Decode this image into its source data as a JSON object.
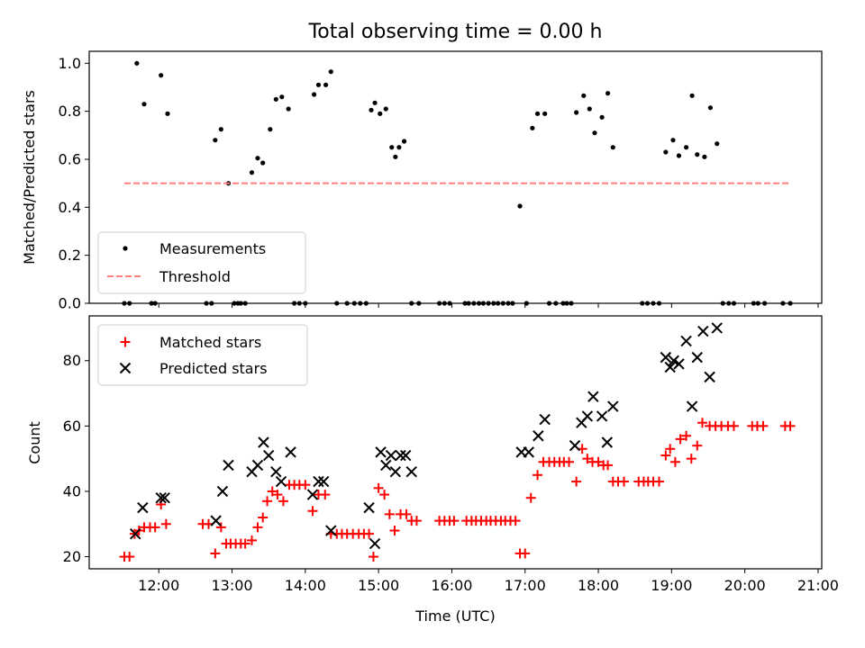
{
  "chart_data": [
    {
      "type": "scatter",
      "title": "Total observing time = 0.00 h",
      "xlabel": "",
      "ylabel": "Matched/Predicted stars",
      "ylim": [
        0.0,
        1.05
      ],
      "yticks": [
        "0.0",
        "0.2",
        "0.4",
        "0.6",
        "0.8",
        "1.0"
      ],
      "x_axis": "time (UTC, hours)",
      "xlim": [
        11.05,
        21.05
      ],
      "legend": {
        "placement": "lower-left",
        "entries": [
          "Measurements",
          "Threshold"
        ]
      },
      "series": [
        {
          "name": "Measurements",
          "marker": "dot",
          "color": "#000000",
          "x": [
            11.53,
            11.6,
            11.7,
            11.8,
            11.9,
            11.95,
            12.03,
            12.12,
            12.65,
            12.72,
            12.77,
            12.85,
            12.95,
            13.03,
            13.08,
            13.12,
            13.18,
            13.27,
            13.35,
            13.42,
            13.52,
            13.6,
            13.68,
            13.77,
            13.85,
            13.92,
            14.0,
            14.12,
            14.18,
            14.28,
            14.35,
            14.43,
            14.57,
            14.67,
            14.75,
            14.83,
            14.9,
            14.95,
            15.02,
            15.1,
            15.18,
            15.23,
            15.28,
            15.35,
            15.45,
            15.55,
            15.83,
            15.9,
            15.97,
            16.18,
            16.23,
            16.3,
            16.37,
            16.43,
            16.5,
            16.57,
            16.63,
            16.7,
            16.77,
            16.83,
            16.93,
            17.02,
            17.1,
            17.17,
            17.27,
            17.33,
            17.42,
            17.52,
            17.57,
            17.63,
            17.7,
            17.8,
            17.88,
            17.95,
            18.05,
            18.13,
            18.2,
            18.6,
            18.67,
            18.75,
            18.83,
            18.92,
            19.02,
            19.1,
            19.2,
            19.28,
            19.35,
            19.45,
            19.53,
            19.62,
            19.7,
            19.78,
            19.85,
            20.12,
            20.18,
            20.27,
            20.52,
            20.62
          ],
          "y": [
            0.0,
            0.0,
            1.0,
            0.83,
            0.0,
            0.0,
            0.95,
            0.79,
            0.0,
            0.0,
            0.68,
            0.725,
            0.5,
            0.0,
            0.0,
            0.0,
            0.0,
            0.545,
            0.605,
            0.585,
            0.725,
            0.85,
            0.86,
            0.81,
            0.0,
            0.0,
            0.0,
            0.87,
            0.91,
            0.91,
            0.965,
            0.0,
            0.0,
            0.0,
            0.0,
            0.0,
            0.805,
            0.835,
            0.79,
            0.81,
            0.65,
            0.61,
            0.65,
            0.675,
            0.0,
            0.0,
            0.0,
            0.0,
            0.0,
            0.0,
            0.0,
            0.0,
            0.0,
            0.0,
            0.0,
            0.0,
            0.0,
            0.0,
            0.0,
            0.0,
            0.405,
            0.0,
            0.73,
            0.79,
            0.79,
            0.0,
            0.0,
            0.0,
            0.0,
            0.0,
            0.795,
            0.865,
            0.81,
            0.71,
            0.775,
            0.875,
            0.65,
            0.0,
            0.0,
            0.0,
            0.0,
            0.63,
            0.68,
            0.615,
            0.65,
            0.865,
            0.62,
            0.61,
            0.815,
            0.665,
            0.0,
            0.0,
            0.0,
            0.0,
            0.0,
            0.0,
            0.0,
            0.0
          ]
        },
        {
          "name": "Threshold",
          "style": "dashed-line",
          "color": "#ff7f7f",
          "x": [
            11.53,
            20.62
          ],
          "y": [
            0.5,
            0.5
          ]
        }
      ]
    },
    {
      "type": "scatter",
      "title": "",
      "xlabel": "Time (UTC)",
      "ylabel": "Count",
      "ylim": [
        16.3,
        93.7
      ],
      "yticks": [
        "20",
        "40",
        "60",
        "80"
      ],
      "x_axis": "time (UTC, hours)",
      "xlim": [
        11.05,
        21.05
      ],
      "xticks": [
        "12:00",
        "13:00",
        "14:00",
        "15:00",
        "16:00",
        "17:00",
        "18:00",
        "19:00",
        "20:00",
        "21:00"
      ],
      "legend": {
        "placement": "top-left",
        "entries": [
          "Matched stars",
          "Predicted stars"
        ]
      },
      "series": [
        {
          "name": "Matched stars",
          "marker": "plus",
          "color": "#ff0000",
          "x": [
            11.53,
            11.6,
            11.67,
            11.73,
            11.8,
            11.88,
            11.95,
            12.03,
            12.1,
            12.6,
            12.68,
            12.77,
            12.85,
            12.92,
            12.98,
            13.05,
            13.12,
            13.18,
            13.27,
            13.35,
            13.42,
            13.48,
            13.55,
            13.62,
            13.7,
            13.78,
            13.85,
            13.92,
            14.0,
            14.1,
            14.18,
            14.27,
            14.35,
            14.43,
            14.5,
            14.57,
            14.65,
            14.73,
            14.8,
            14.87,
            14.93,
            15.0,
            15.08,
            15.15,
            15.22,
            15.3,
            15.38,
            15.45,
            15.52,
            15.83,
            15.9,
            15.97,
            16.03,
            16.2,
            16.27,
            16.33,
            16.4,
            16.47,
            16.53,
            16.6,
            16.67,
            16.73,
            16.8,
            16.87,
            16.93,
            17.0,
            17.08,
            17.17,
            17.25,
            17.33,
            17.4,
            17.47,
            17.53,
            17.6,
            17.7,
            17.78,
            17.85,
            17.92,
            18.0,
            18.07,
            18.13,
            18.2,
            18.27,
            18.35,
            18.55,
            18.62,
            18.68,
            18.75,
            18.83,
            18.92,
            18.98,
            19.05,
            19.12,
            19.2,
            19.27,
            19.35,
            19.42,
            19.52,
            19.6,
            19.68,
            19.77,
            19.85,
            20.1,
            20.17,
            20.25,
            20.55,
            20.62
          ],
          "y": [
            20,
            20,
            27,
            28,
            29,
            29,
            29,
            36,
            30,
            30,
            30,
            21,
            29,
            24,
            24,
            24,
            24,
            24,
            25,
            29,
            32,
            37,
            40,
            39,
            37,
            42,
            42,
            42,
            42,
            34,
            39,
            39,
            27,
            27,
            27,
            27,
            27,
            27,
            27,
            27,
            20,
            41,
            39,
            33,
            28,
            33,
            33,
            31,
            31,
            31,
            31,
            31,
            31,
            31,
            31,
            31,
            31,
            31,
            31,
            31,
            31,
            31,
            31,
            31,
            21,
            21,
            38,
            45,
            49,
            49,
            49,
            49,
            49,
            49,
            43,
            53,
            50,
            49,
            49,
            48,
            48,
            43,
            43,
            43,
            43,
            43,
            43,
            43,
            43,
            51,
            53,
            49,
            56,
            57,
            50,
            54,
            61,
            60,
            60,
            60,
            60,
            60,
            60,
            60,
            60,
            60,
            60
          ]
        },
        {
          "name": "Predicted stars",
          "marker": "x",
          "color": "#000000",
          "x": [
            11.68,
            11.78,
            12.03,
            12.08,
            12.78,
            12.87,
            12.95,
            13.27,
            13.35,
            13.43,
            13.5,
            13.6,
            13.67,
            13.8,
            14.1,
            14.18,
            14.25,
            14.35,
            14.87,
            14.95,
            15.03,
            15.1,
            15.17,
            15.23,
            15.3,
            15.37,
            15.45,
            16.95,
            17.05,
            17.18,
            17.27,
            17.68,
            17.77,
            17.85,
            17.93,
            18.05,
            18.12,
            18.2,
            18.92,
            18.98,
            19.03,
            19.1,
            19.2,
            19.28,
            19.35,
            19.43,
            19.52,
            19.62
          ],
          "y": [
            27,
            35,
            38,
            38,
            31,
            40,
            48,
            46,
            48,
            55,
            51,
            46,
            43,
            52,
            39,
            43,
            43,
            28,
            35,
            24,
            52,
            48,
            51,
            46,
            51,
            51,
            46,
            52,
            52,
            57,
            62,
            54,
            61,
            63,
            69,
            63,
            55,
            66,
            81,
            78,
            80,
            79,
            86,
            66,
            81,
            89,
            75,
            90
          ]
        }
      ]
    }
  ]
}
